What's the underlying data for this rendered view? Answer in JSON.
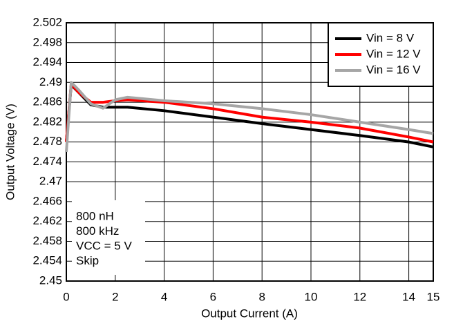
{
  "chart_data": {
    "type": "line",
    "x_label": "Output Current (A)",
    "y_label": "Output Voltage (V)",
    "x": [
      0,
      0.2,
      0.5,
      1,
      1.5,
      2,
      2.5,
      4,
      6,
      8,
      10,
      12,
      14,
      15
    ],
    "series": [
      {
        "name": "Vin = 8 V",
        "color": "#000000",
        "values": [
          2.478,
          2.4895,
          2.488,
          2.4855,
          2.485,
          2.485,
          2.485,
          2.4843,
          2.483,
          2.4817,
          2.4805,
          2.4793,
          2.478,
          2.477
        ]
      },
      {
        "name": "Vin = 12 V",
        "color": "#ff0000",
        "values": [
          2.478,
          2.4897,
          2.488,
          2.486,
          2.486,
          2.4863,
          2.4865,
          2.486,
          2.4847,
          2.483,
          2.482,
          2.4808,
          2.479,
          2.478
        ]
      },
      {
        "name": "Vin = 16 V",
        "color": "#a6a6a6",
        "values": [
          2.476,
          2.49,
          2.4885,
          2.4857,
          2.4848,
          2.4865,
          2.487,
          2.4863,
          2.4857,
          2.4847,
          2.4835,
          2.482,
          2.4805,
          2.4797
        ]
      }
    ],
    "xlim": [
      0,
      15
    ],
    "xticks": [
      0,
      2,
      4,
      6,
      8,
      10,
      12,
      14,
      15
    ],
    "ylim": [
      2.45,
      2.502
    ],
    "yticks": [
      2.45,
      2.454,
      2.458,
      2.462,
      2.466,
      2.47,
      2.474,
      2.478,
      2.482,
      2.486,
      2.49,
      2.494,
      2.498,
      2.502
    ],
    "grid": true,
    "legend_position": "upper right",
    "annotations": [
      "800 nH",
      "800 kHz",
      "VCC = 5 V",
      "Skip"
    ]
  }
}
